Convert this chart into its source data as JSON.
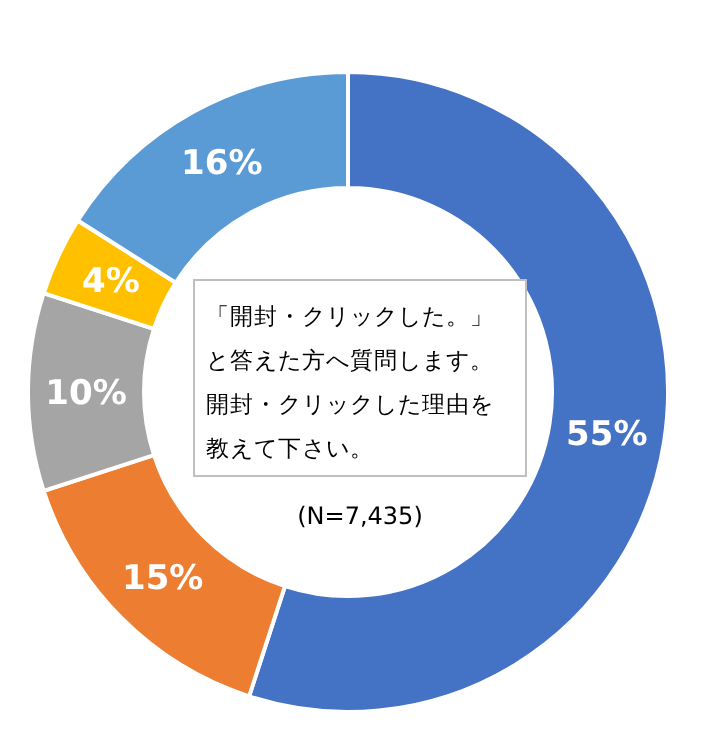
{
  "chart_data": {
    "type": "donut",
    "categories": [
      null,
      null,
      null,
      null,
      null
    ],
    "values": [
      55,
      15,
      10,
      4,
      16
    ],
    "colors": [
      "#4472c4",
      "#ed7d31",
      "#a5a5a5",
      "#ffc000",
      "#5b9bd5"
    ],
    "value_labels": [
      "55%",
      "15%",
      "10%",
      "4%",
      "16%"
    ],
    "annotations": [
      "「開封・クリックした。」と答えた方へ質問します。開封・クリックした理由を教えて下さい。",
      "(N=7,435)"
    ]
  }
}
